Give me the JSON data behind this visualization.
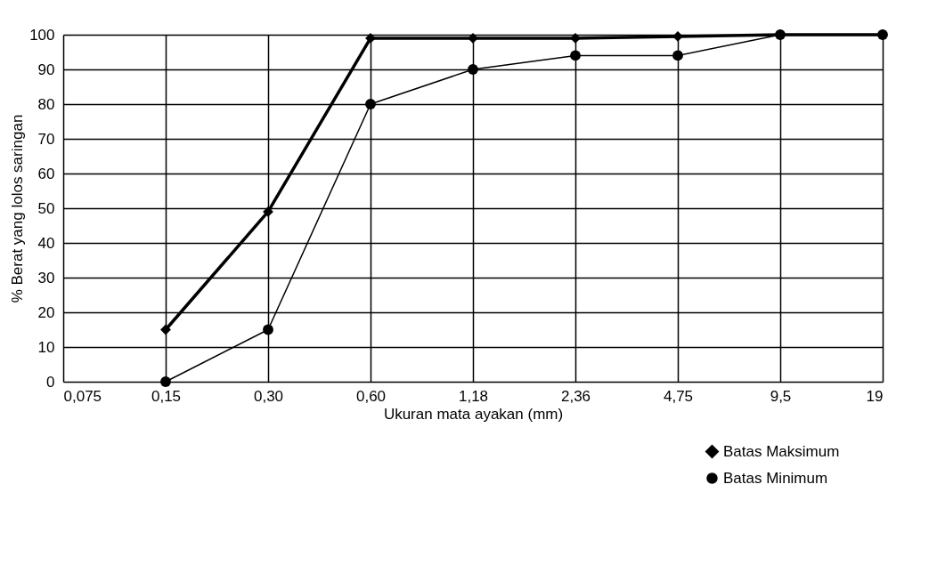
{
  "chart_data": {
    "type": "line",
    "xlabel": "Ukuran mata ayakan (mm)",
    "ylabel": "% Berat yang lolos saringan",
    "categories": [
      "0,075",
      "0,15",
      "0,30",
      "0,60",
      "1,18",
      "2,36",
      "4,75",
      "9,5",
      "19"
    ],
    "ylim": [
      0,
      100
    ],
    "yticks": [
      0,
      10,
      20,
      30,
      40,
      50,
      60,
      70,
      80,
      90,
      100
    ],
    "grid": true,
    "legend": "bottom right",
    "series": [
      {
        "name": "Batas Maksimum",
        "color": "#000000",
        "marker": "diamond",
        "values": [
          null,
          15,
          49,
          99,
          99,
          99,
          99.5,
          100,
          100
        ]
      },
      {
        "name": "Batas Minimum",
        "color": "#000000",
        "marker": "circle",
        "values": [
          null,
          0,
          15,
          80,
          90,
          94,
          94,
          100,
          100
        ]
      }
    ]
  }
}
